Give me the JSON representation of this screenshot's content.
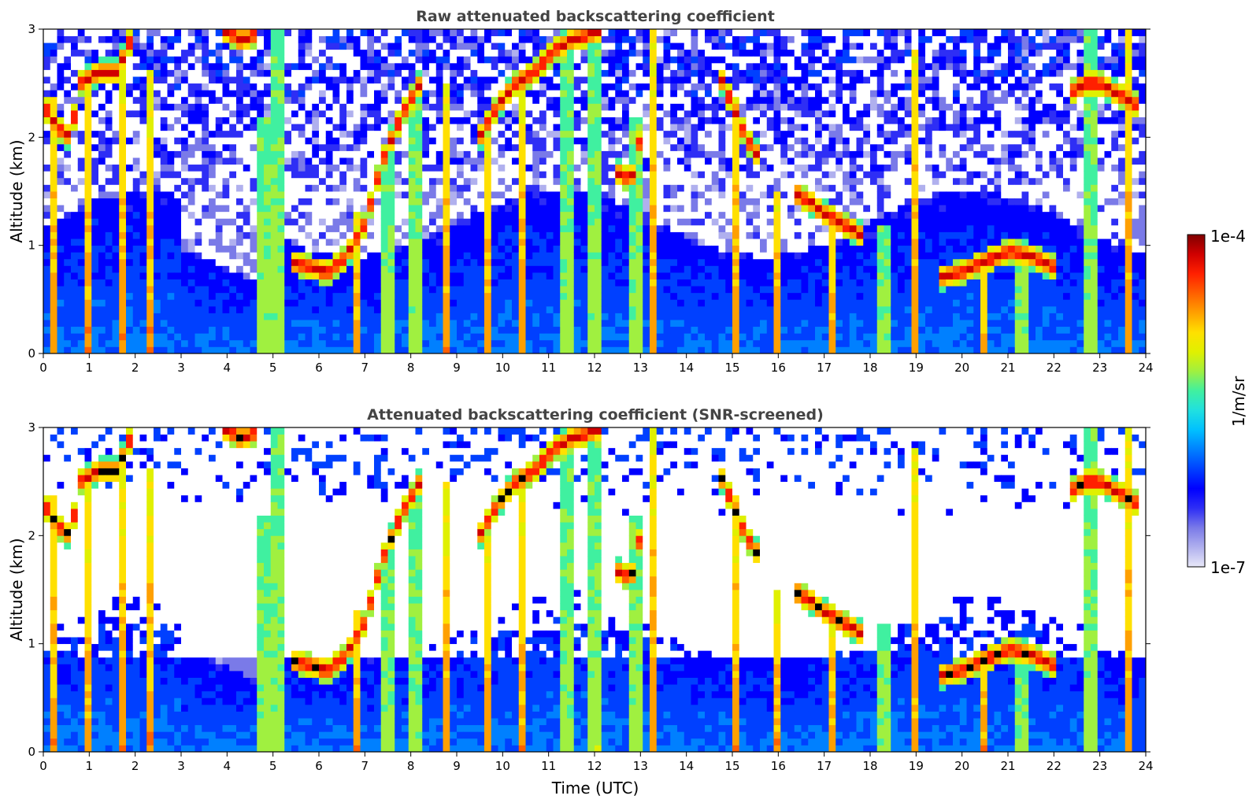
{
  "chart_data": [
    {
      "type": "heatmap",
      "title": "Raw attenuated backscattering coefficient",
      "xlabel": "",
      "ylabel": "Altitude (km)",
      "xlim": [
        0,
        24
      ],
      "ylim": [
        0,
        3
      ],
      "xticks": [
        "0",
        "1",
        "2",
        "3",
        "4",
        "5",
        "6",
        "7",
        "8",
        "9",
        "10",
        "11",
        "12",
        "13",
        "14",
        "15",
        "16",
        "17",
        "18",
        "19",
        "20",
        "21",
        "22",
        "23",
        "24"
      ],
      "yticks": [
        "0",
        "1",
        "2",
        "3"
      ],
      "screened": false
    },
    {
      "type": "heatmap",
      "title": "Attenuated backscattering coefficient (SNR-screened)",
      "xlabel": "Time (UTC)",
      "ylabel": "Altitude (km)",
      "xlim": [
        0,
        24
      ],
      "ylim": [
        0,
        3
      ],
      "xticks": [
        "0",
        "1",
        "2",
        "3",
        "4",
        "5",
        "6",
        "7",
        "8",
        "9",
        "10",
        "11",
        "12",
        "13",
        "14",
        "15",
        "16",
        "17",
        "18",
        "19",
        "20",
        "21",
        "22",
        "23",
        "24"
      ],
      "yticks": [
        "0",
        "1",
        "2",
        "3"
      ],
      "screened": true
    }
  ],
  "colorbar": {
    "label": "1/m/sr",
    "max_label": "1e-4",
    "min_label": "1e-7",
    "scale": "log",
    "range": [
      1e-07,
      0.0001
    ],
    "colormap": [
      "#e8e8f8",
      "#b0b0ee",
      "#7a7ae8",
      "#2e2ef5",
      "#0000ff",
      "#0040ff",
      "#0080ff",
      "#00c0ff",
      "#20e0e0",
      "#40f0a0",
      "#a0f040",
      "#e0f000",
      "#ffe000",
      "#ffa000",
      "#ff6000",
      "#ff2000",
      "#d00000",
      "#800000"
    ]
  },
  "features": {
    "cloud_layers": [
      {
        "t": [
          0.0,
          0.3,
          0.6,
          0.8,
          1.2,
          1.6,
          2.0
        ],
        "alt": [
          2.3,
          2.1,
          2.0,
          2.5,
          2.6,
          2.6,
          3.0
        ]
      },
      {
        "t": [
          3.9,
          4.3,
          4.6
        ],
        "alt": [
          3.0,
          2.9,
          2.95
        ]
      },
      {
        "t": [
          5.4,
          5.8,
          6.2,
          6.6,
          7.0,
          7.4,
          7.8,
          8.2
        ],
        "alt": [
          0.85,
          0.8,
          0.75,
          0.9,
          1.2,
          1.8,
          2.2,
          2.5
        ]
      },
      {
        "t": [
          9.5,
          9.9,
          10.3,
          10.7,
          11.1,
          11.5,
          11.9,
          12.2
        ],
        "alt": [
          2.0,
          2.3,
          2.5,
          2.6,
          2.8,
          2.9,
          2.95,
          3.0
        ]
      },
      {
        "t": [
          12.4,
          12.8,
          13.1
        ],
        "alt": [
          1.7,
          1.6,
          2.2
        ]
      },
      {
        "t": [
          14.7,
          15.0,
          15.3,
          15.6
        ],
        "alt": [
          2.6,
          2.3,
          2.0,
          1.8
        ]
      },
      {
        "t": [
          16.3,
          16.7,
          17.0,
          17.4,
          17.8
        ],
        "alt": [
          1.5,
          1.4,
          1.3,
          1.2,
          1.1
        ]
      },
      {
        "t": [
          19.5,
          20.0,
          20.5,
          21.0,
          21.5,
          22.0
        ],
        "alt": [
          0.7,
          0.75,
          0.85,
          0.95,
          0.9,
          0.8
        ]
      },
      {
        "t": [
          22.3,
          22.7,
          23.0,
          23.4,
          23.8
        ],
        "alt": [
          2.4,
          2.5,
          2.5,
          2.4,
          2.3
        ]
      }
    ],
    "vertical_plumes": [
      {
        "t": 0.2,
        "top": 2.4
      },
      {
        "t": 1.0,
        "top": 2.6
      },
      {
        "t": 1.7,
        "top": 2.6
      },
      {
        "t": 2.3,
        "top": 2.6
      },
      {
        "t": 4.8,
        "top": 2.2
      },
      {
        "t": 5.1,
        "top": 3.0
      },
      {
        "t": 6.8,
        "top": 1.3
      },
      {
        "t": 7.5,
        "top": 1.9
      },
      {
        "t": 8.1,
        "top": 2.4
      },
      {
        "t": 8.8,
        "top": 2.5
      },
      {
        "t": 9.7,
        "top": 2.0
      },
      {
        "t": 10.4,
        "top": 2.5
      },
      {
        "t": 11.4,
        "top": 2.9
      },
      {
        "t": 12.0,
        "top": 3.0
      },
      {
        "t": 12.9,
        "top": 2.2
      },
      {
        "t": 13.3,
        "top": 3.0
      },
      {
        "t": 15.1,
        "top": 2.4
      },
      {
        "t": 16.0,
        "top": 1.5
      },
      {
        "t": 17.2,
        "top": 1.4
      },
      {
        "t": 18.3,
        "top": 1.2
      },
      {
        "t": 19.0,
        "top": 2.8
      },
      {
        "t": 20.5,
        "top": 0.9
      },
      {
        "t": 21.3,
        "top": 1.0
      },
      {
        "t": 22.8,
        "top": 3.0
      },
      {
        "t": 23.6,
        "top": 3.0
      }
    ]
  }
}
